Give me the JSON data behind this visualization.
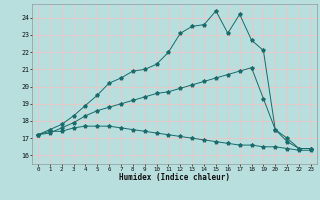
{
  "background_color": "#b8dede",
  "grid_color": "#e8c8c8",
  "line_color": "#1a6b6b",
  "xlabel": "Humidex (Indice chaleur)",
  "xlim": [
    -0.5,
    23.5
  ],
  "ylim": [
    15.5,
    24.8
  ],
  "xticks": [
    0,
    1,
    2,
    3,
    4,
    5,
    6,
    7,
    8,
    9,
    10,
    11,
    12,
    13,
    14,
    15,
    16,
    17,
    18,
    19,
    20,
    21,
    22,
    23
  ],
  "yticks": [
    16,
    17,
    18,
    19,
    20,
    21,
    22,
    23,
    24
  ],
  "line1_x": [
    0,
    1,
    2,
    3,
    4,
    5,
    6,
    7,
    8,
    9,
    10,
    11,
    12,
    13,
    14,
    15,
    16,
    17,
    18,
    19,
    20,
    21,
    22,
    23
  ],
  "line1_y": [
    17.2,
    17.4,
    17.4,
    17.6,
    17.7,
    17.7,
    17.7,
    17.6,
    17.5,
    17.4,
    17.3,
    17.2,
    17.1,
    17.0,
    16.9,
    16.8,
    16.7,
    16.6,
    16.6,
    16.5,
    16.5,
    16.4,
    16.3,
    16.3
  ],
  "line2_x": [
    0,
    1,
    2,
    3,
    4,
    5,
    6,
    7,
    8,
    9,
    10,
    11,
    12,
    13,
    14,
    15,
    16,
    17,
    18,
    19,
    20,
    21,
    22,
    23
  ],
  "line2_y": [
    17.2,
    17.3,
    17.6,
    17.9,
    18.3,
    18.6,
    18.8,
    19.0,
    19.2,
    19.4,
    19.6,
    19.7,
    19.9,
    20.1,
    20.3,
    20.5,
    20.7,
    20.9,
    21.1,
    19.3,
    17.5,
    16.8,
    16.4,
    16.4
  ],
  "line3_x": [
    0,
    1,
    2,
    3,
    4,
    5,
    6,
    7,
    8,
    9,
    10,
    11,
    12,
    13,
    14,
    15,
    16,
    17,
    18,
    19,
    20,
    21,
    22,
    23
  ],
  "line3_y": [
    17.2,
    17.5,
    17.8,
    18.3,
    18.9,
    19.5,
    20.2,
    20.5,
    20.9,
    21.0,
    21.3,
    22.0,
    23.1,
    23.5,
    23.6,
    24.4,
    23.1,
    24.2,
    22.7,
    22.1,
    17.5,
    17.0,
    16.4,
    16.4
  ]
}
